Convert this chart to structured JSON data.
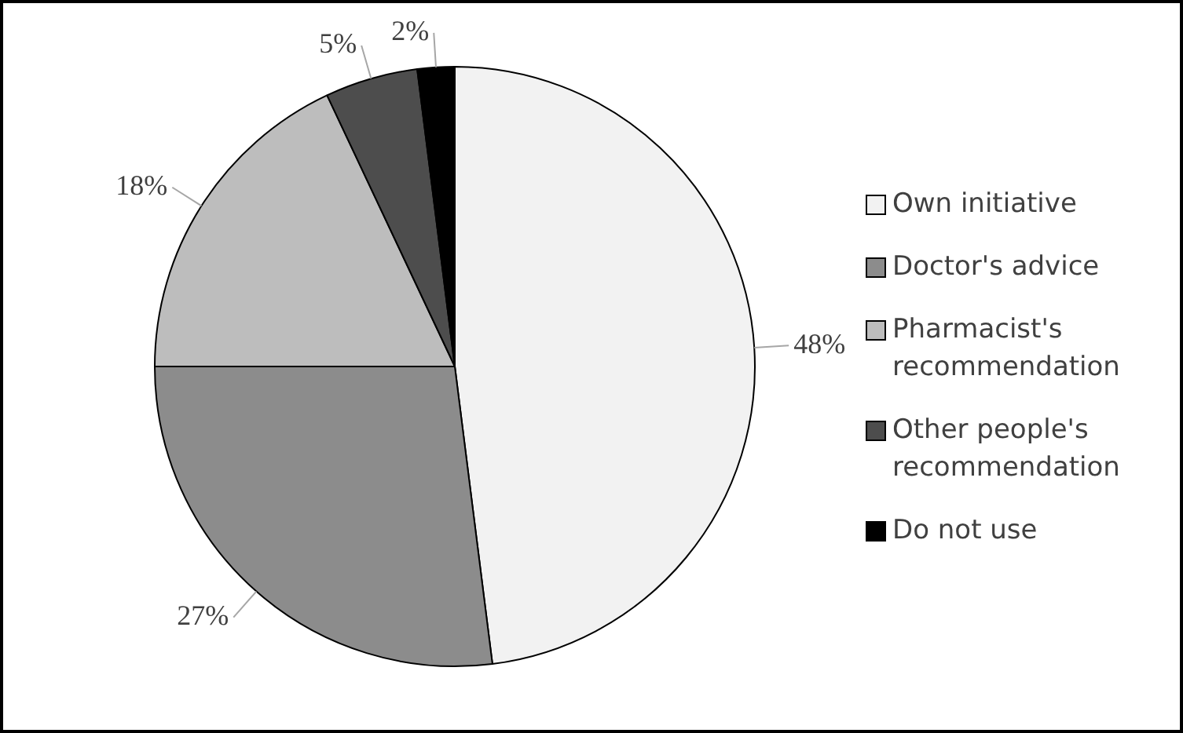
{
  "chart_data": {
    "type": "pie",
    "categories": [
      "Own initiative",
      "Doctor's advice",
      "Pharmacist's recommendation",
      "Other people's recommendation",
      "Do not use"
    ],
    "values": [
      48,
      27,
      18,
      5,
      2
    ],
    "colors": [
      "#f2f2f2",
      "#8c8c8c",
      "#bdbdbd",
      "#4d4d4d",
      "#000000"
    ],
    "value_labels": [
      "48%",
      "27%",
      "18%",
      "5%",
      "2%"
    ],
    "legend": "right"
  }
}
